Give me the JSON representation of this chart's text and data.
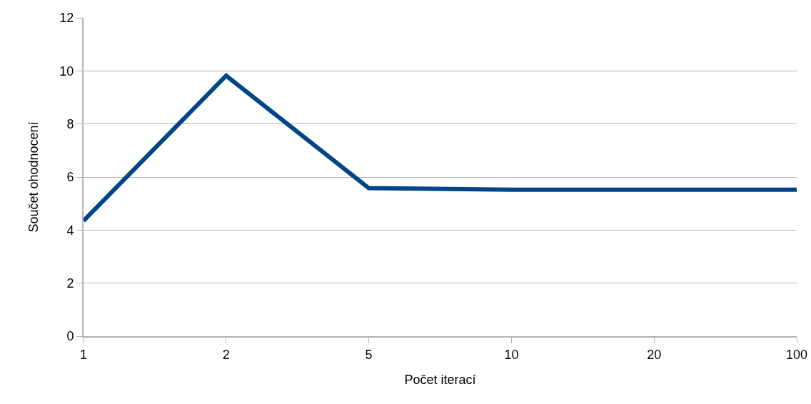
{
  "chart_data": {
    "type": "line",
    "xlabel": "Počet iterací",
    "ylabel": "Součet ohodnocení",
    "categories": [
      "1",
      "2",
      "5",
      "10",
      "20",
      "100"
    ],
    "series": [
      {
        "color": "#004586",
        "values": [
          4.35,
          9.82,
          5.58,
          5.52,
          5.52,
          5.52
        ]
      }
    ],
    "ylim": [
      0,
      12
    ],
    "yticks": [
      0,
      2,
      4,
      6,
      8,
      10,
      12
    ],
    "grid": "y"
  }
}
